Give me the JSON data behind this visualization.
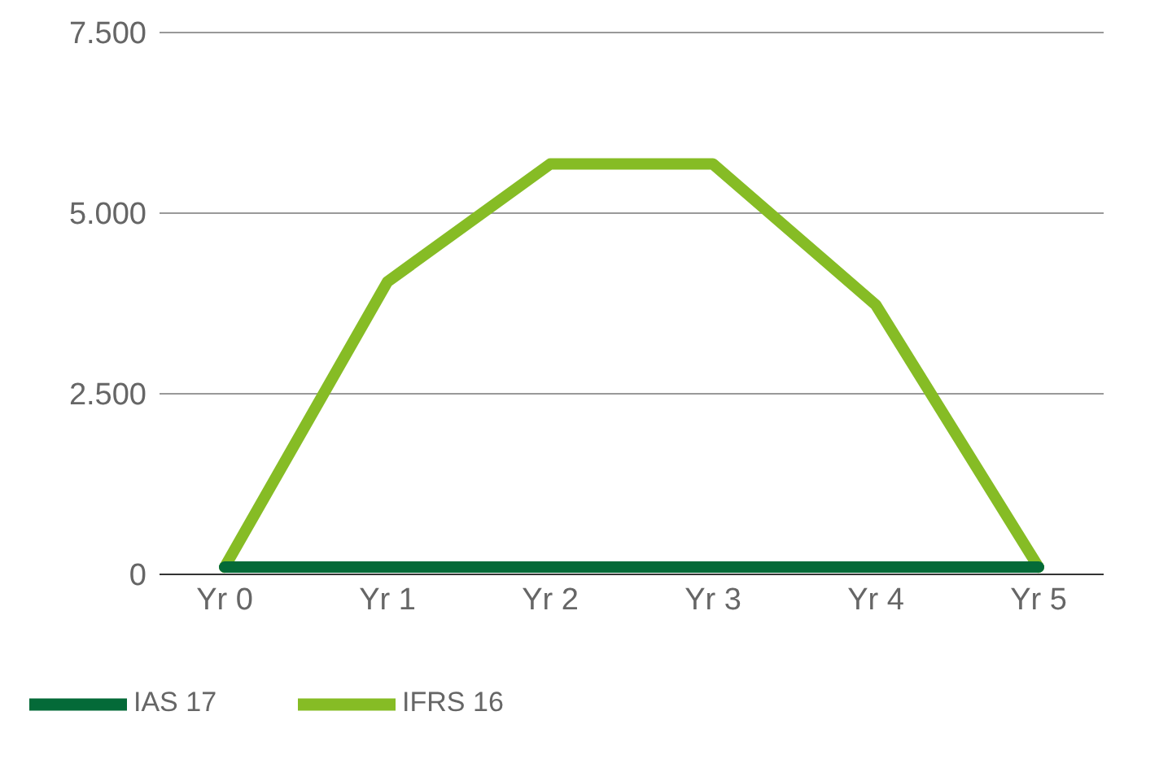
{
  "chart_data": {
    "type": "line",
    "categories": [
      "Yr 0",
      "Yr 1",
      "Yr 2",
      "Yr 3",
      "Yr 4",
      "Yr 5"
    ],
    "series": [
      {
        "name": "IFRS 16",
        "color": "#86bc25",
        "values": [
          100,
          4050,
          5680,
          5680,
          3730,
          100
        ]
      },
      {
        "name": "IAS 17",
        "color": "#046a38",
        "values": [
          100,
          100,
          100,
          100,
          100,
          100
        ]
      }
    ],
    "ylim": [
      0,
      7500
    ],
    "yticks": [
      {
        "value": 0,
        "label": "0"
      },
      {
        "value": 2500,
        "label": "2.500"
      },
      {
        "value": 5000,
        "label": "5.000"
      },
      {
        "value": 7500,
        "label": "7.500"
      }
    ],
    "grid": "y",
    "legend": "bottom left",
    "marker": "none",
    "line_style": "solid"
  }
}
